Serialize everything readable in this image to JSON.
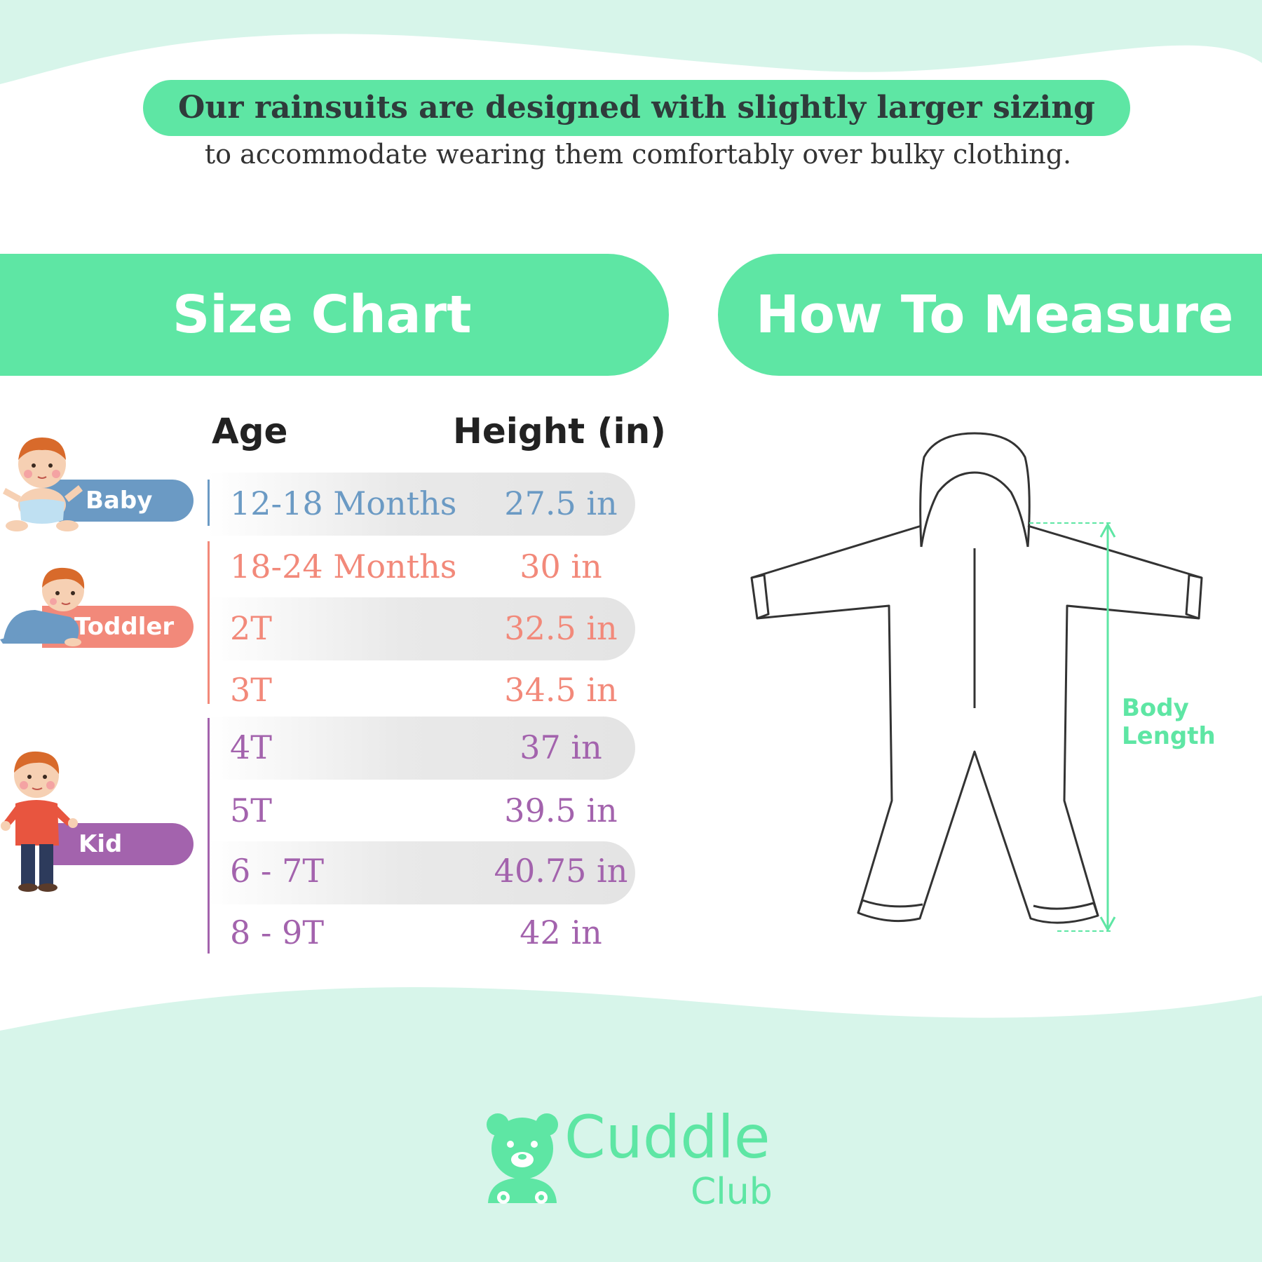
{
  "intro": {
    "headline": "Our rainsuits are designed with slightly larger sizing",
    "subline": "to accommodate wearing them comfortably over bulky clothing."
  },
  "banners": {
    "size_chart": "Size Chart",
    "how_to_measure": "How To Measure"
  },
  "table": {
    "headers": {
      "age": "Age",
      "height": "Height (in)"
    },
    "groups": [
      {
        "label": "Baby",
        "color": "#6b9ac4"
      },
      {
        "label": "Toddler",
        "color": "#f2897a"
      },
      {
        "label": "Kid",
        "color": "#a363ad"
      }
    ],
    "rows": [
      {
        "age": "12-18 Months",
        "height": "27.5 in"
      },
      {
        "age": "18-24 Months",
        "height": "30 in"
      },
      {
        "age": "2T",
        "height": "32.5 in"
      },
      {
        "age": "3T",
        "height": "34.5 in"
      },
      {
        "age": "4T",
        "height": "37 in"
      },
      {
        "age": "5T",
        "height": "39.5 in"
      },
      {
        "age": "6 - 7T",
        "height": "40.75 in"
      },
      {
        "age": "8 - 9T",
        "height": "42 in"
      }
    ]
  },
  "measure": {
    "label_line1": "Body",
    "label_line2": "Length",
    "accent_color": "#5ee6a4"
  },
  "brand": {
    "name_line1": "Cuddle",
    "name_line2": "Club",
    "color": "#5ee6a4",
    "icon": "bear-icon"
  }
}
